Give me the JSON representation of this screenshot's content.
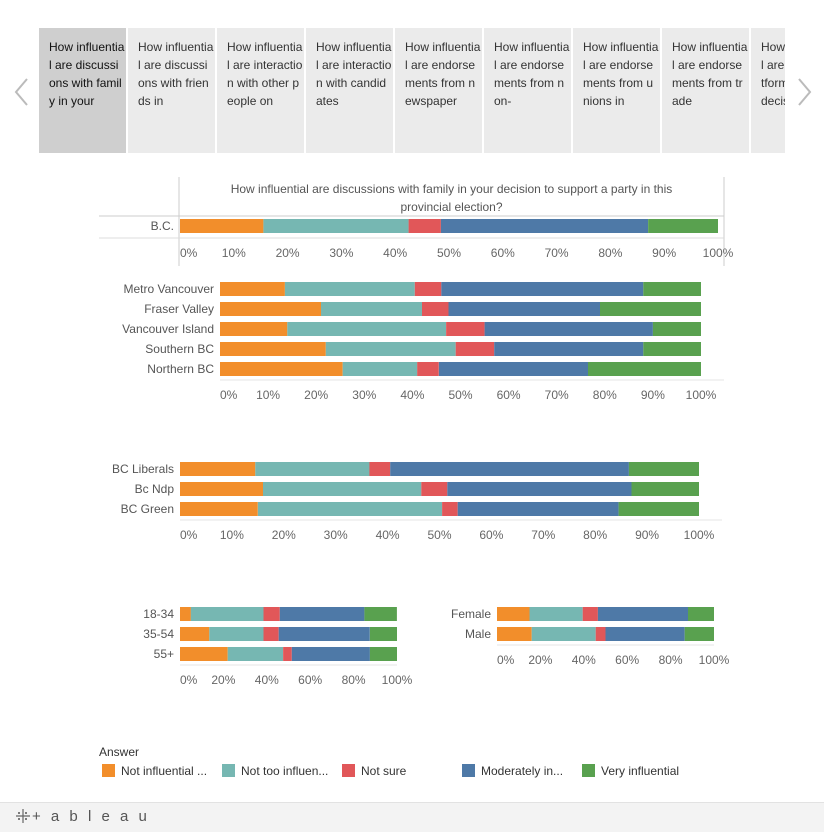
{
  "tabs": [
    {
      "label": "How influential are discussions with family in your"
    },
    {
      "label": "How influential are discussions with friends in"
    },
    {
      "label": "How influential are interaction with other people on"
    },
    {
      "label": "How influential are interaction with candidates"
    },
    {
      "label": "How influential are endorsements from newspaper"
    },
    {
      "label": "How influential are endorsements from non-"
    },
    {
      "label": "How influential are endorsements from unions in"
    },
    {
      "label": "How influential are endorsements from trade"
    },
    {
      "label": "How influential are party platforms in your decisi"
    }
  ],
  "active_tab": 0,
  "nav": {
    "prev_icon": "chevron-left-icon",
    "next_icon": "chevron-right-icon"
  },
  "legend": {
    "title": "Answer",
    "items": [
      "Not influential ...",
      "Not too influen...",
      "Not sure",
      "Moderately in...",
      "Very influential"
    ]
  },
  "footer": {
    "brand": "+ a b l e a u"
  },
  "colors": {
    "Not influential": "#f28e2b",
    "Not too influential": "#76b7b2",
    "Not sure": "#e15759",
    "Moderately influential": "#4e79a7",
    "Very influential": "#59a14f"
  },
  "chart_data": [
    {
      "type": "bar",
      "stacked": true,
      "orientation": "horizontal",
      "title": "How influential are discussions with family in your decision to support a party in this provincial election?",
      "categories": [
        "B.C."
      ],
      "series": [
        {
          "name": "Not influential",
          "values": [
            15.5
          ]
        },
        {
          "name": "Not too influential",
          "values": [
            27
          ]
        },
        {
          "name": "Not sure",
          "values": [
            6
          ]
        },
        {
          "name": "Moderately influential",
          "values": [
            38.5
          ]
        },
        {
          "name": "Very influential",
          "values": [
            13
          ]
        }
      ],
      "xticks": [
        "0%",
        "10%",
        "20%",
        "30%",
        "40%",
        "50%",
        "60%",
        "70%",
        "80%",
        "90%",
        "100%"
      ]
    },
    {
      "type": "bar",
      "stacked": true,
      "orientation": "horizontal",
      "categories": [
        "Metro Vancouver",
        "Fraser Valley",
        "Vancouver Island",
        "Southern BC",
        "Northern BC"
      ],
      "series": [
        {
          "name": "Not influential",
          "values": [
            13.5,
            21,
            14,
            22,
            25.5
          ]
        },
        {
          "name": "Not too influential",
          "values": [
            27,
            21,
            33,
            27,
            15.5
          ]
        },
        {
          "name": "Not sure",
          "values": [
            5.5,
            5.5,
            8,
            8,
            4.5
          ]
        },
        {
          "name": "Moderately influential",
          "values": [
            42,
            31.5,
            35,
            31,
            31
          ]
        },
        {
          "name": "Very influential",
          "values": [
            12,
            21,
            10,
            12,
            23.5
          ]
        }
      ],
      "xticks": [
        "0%",
        "10%",
        "20%",
        "30%",
        "40%",
        "50%",
        "60%",
        "70%",
        "80%",
        "90%",
        "100%"
      ]
    },
    {
      "type": "bar",
      "stacked": true,
      "orientation": "horizontal",
      "categories": [
        "BC Liberals",
        "Bc Ndp",
        "BC Green"
      ],
      "series": [
        {
          "name": "Not influential",
          "values": [
            14.5,
            16,
            15
          ]
        },
        {
          "name": "Not too influential",
          "values": [
            22,
            30.5,
            35.5
          ]
        },
        {
          "name": "Not sure",
          "values": [
            4,
            5,
            3
          ]
        },
        {
          "name": "Moderately influential",
          "values": [
            46,
            35.5,
            31
          ]
        },
        {
          "name": "Very influential",
          "values": [
            13.5,
            13,
            15.5
          ]
        }
      ],
      "xticks": [
        "0%",
        "10%",
        "20%",
        "30%",
        "40%",
        "50%",
        "60%",
        "70%",
        "80%",
        "90%",
        "100%"
      ]
    },
    {
      "type": "bar",
      "stacked": true,
      "orientation": "horizontal",
      "categories": [
        "18-34",
        "35-54",
        "55+"
      ],
      "series": [
        {
          "name": "Not influential",
          "values": [
            5,
            13.5,
            22
          ]
        },
        {
          "name": "Not too influential",
          "values": [
            33.5,
            25,
            25.5
          ]
        },
        {
          "name": "Not sure",
          "values": [
            7.5,
            7,
            4
          ]
        },
        {
          "name": "Moderately influential",
          "values": [
            39,
            42,
            36
          ]
        },
        {
          "name": "Very influential",
          "values": [
            15,
            12.5,
            12.5
          ]
        }
      ],
      "xticks": [
        "0%",
        "20%",
        "40%",
        "60%",
        "80%",
        "100%"
      ]
    },
    {
      "type": "bar",
      "stacked": true,
      "orientation": "horizontal",
      "categories": [
        "Female",
        "Male"
      ],
      "series": [
        {
          "name": "Not influential",
          "values": [
            15,
            16
          ]
        },
        {
          "name": "Not too influential",
          "values": [
            24.5,
            29.5
          ]
        },
        {
          "name": "Not sure",
          "values": [
            7,
            4.5
          ]
        },
        {
          "name": "Moderately influential",
          "values": [
            41.5,
            36.5
          ]
        },
        {
          "name": "Very influential",
          "values": [
            12,
            13.5
          ]
        }
      ],
      "xticks": [
        "0%",
        "20%",
        "40%",
        "60%",
        "80%",
        "100%"
      ]
    }
  ]
}
